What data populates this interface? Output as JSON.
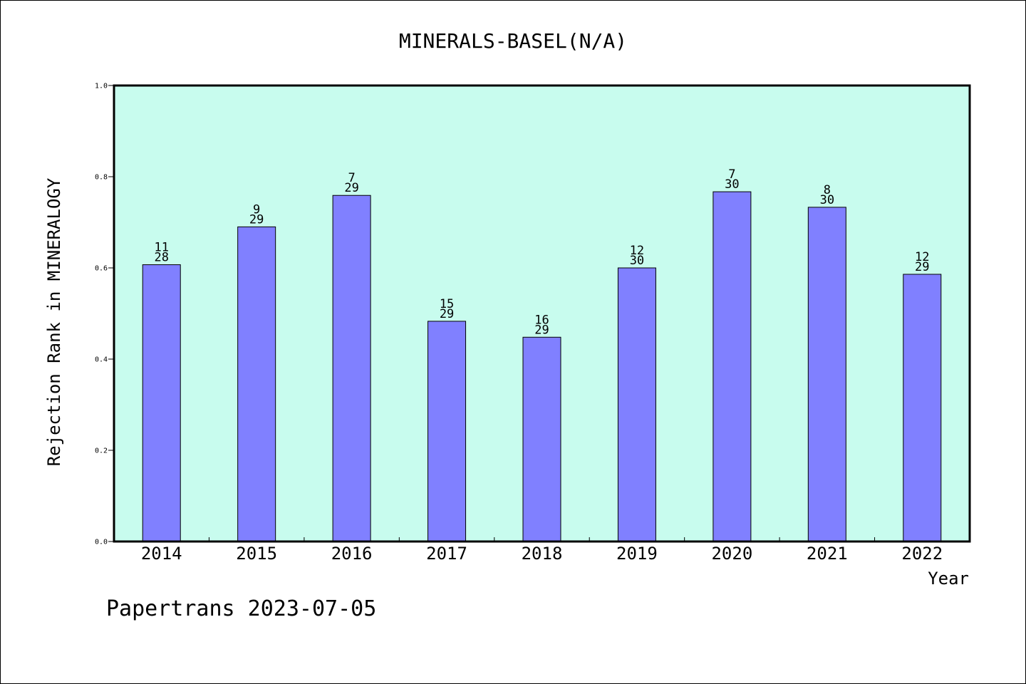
{
  "chart_data": {
    "type": "bar",
    "title": "MINERALS-BASEL(N/A)",
    "xlabel": "Year",
    "ylabel": "Rejection Rank in MINERALOGY",
    "categories": [
      "2014",
      "2015",
      "2016",
      "2017",
      "2018",
      "2019",
      "2020",
      "2021",
      "2022"
    ],
    "values": [
      0.607,
      0.69,
      0.759,
      0.483,
      0.448,
      0.6,
      0.767,
      0.733,
      0.586
    ],
    "labels_top": [
      "11",
      "9",
      "7",
      "15",
      "16",
      "12",
      "7",
      "8",
      "12"
    ],
    "labels_bottom": [
      "28",
      "29",
      "29",
      "29",
      "29",
      "30",
      "30",
      "30",
      "29"
    ],
    "ylim": [
      0,
      1.0
    ],
    "yticks": [
      "0.0",
      "0.2",
      "0.4",
      "0.6",
      "0.8",
      "1.0"
    ],
    "grid": false,
    "colors": {
      "plot_background": "#c8fcee",
      "bar_fill": "#8080ff",
      "bar_edge": "#000000"
    }
  },
  "footer": {
    "text": "Papertrans 2023-07-05"
  }
}
